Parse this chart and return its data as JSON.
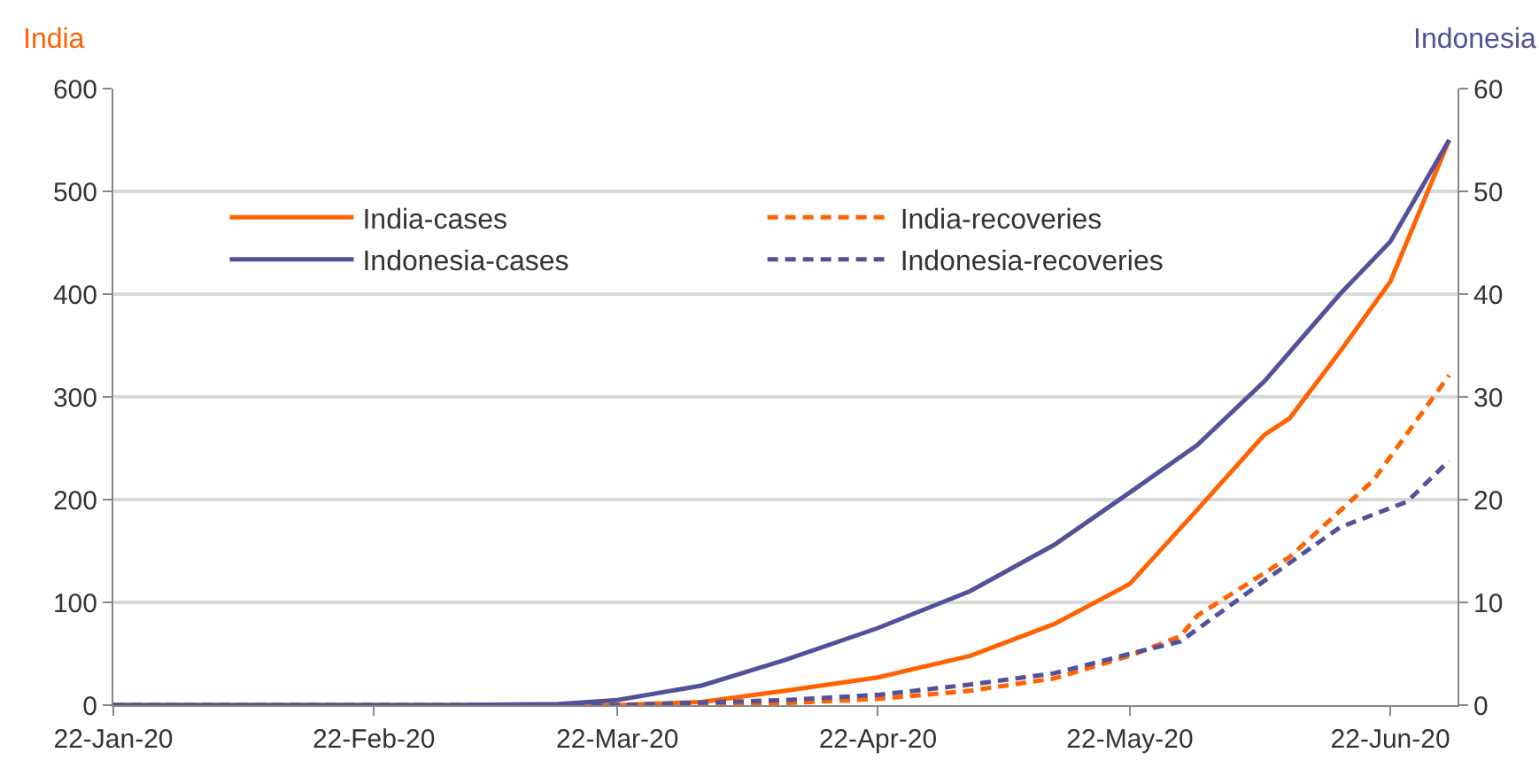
{
  "chart_data": {
    "type": "line",
    "ylabel": "India",
    "y2label": "Indonesia",
    "xlim": [
      "2020-01-22",
      "2020-06-30"
    ],
    "xticks": [
      {
        "value": "2020-01-22",
        "label": "22-Jan-20"
      },
      {
        "value": "2020-02-22",
        "label": "22-Feb-20"
      },
      {
        "value": "2020-03-22",
        "label": "22-Mar-20"
      },
      {
        "value": "2020-04-22",
        "label": "22-Apr-20"
      },
      {
        "value": "2020-05-22",
        "label": "22-May-20"
      },
      {
        "value": "2020-06-22",
        "label": "22-Jun-20"
      }
    ],
    "ylim": [
      0,
      600
    ],
    "yticks": [
      0,
      100,
      200,
      300,
      400,
      500,
      600
    ],
    "y2lim": [
      0,
      60
    ],
    "y2ticks": [
      0,
      10,
      20,
      30,
      40,
      50,
      60
    ],
    "grid": "y",
    "legend": "top left",
    "series": [
      {
        "name": "India-cases",
        "color": "#ff6200",
        "line_style": "solid",
        "x": [
          "2020-01-22",
          "2020-03-01",
          "2020-03-15",
          "2020-03-22",
          "2020-04-01",
          "2020-04-11",
          "2020-04-22",
          "2020-05-03",
          "2020-05-13",
          "2020-05-22",
          "2020-05-30",
          "2020-06-07",
          "2020-06-10",
          "2020-06-16",
          "2020-06-22",
          "2020-06-29"
        ],
        "values": [
          0,
          0,
          0,
          0,
          3,
          14,
          27,
          48,
          79,
          118,
          190,
          263,
          279,
          344,
          412,
          550
        ]
      },
      {
        "name": "India-recoveries",
        "color": "#ff6200",
        "line_style": "dashed",
        "x": [
          "2020-01-22",
          "2020-03-22",
          "2020-04-01",
          "2020-04-11",
          "2020-04-22",
          "2020-05-03",
          "2020-05-13",
          "2020-05-22",
          "2020-05-28",
          "2020-05-30",
          "2020-06-10",
          "2020-06-20",
          "2020-06-29"
        ],
        "values": [
          0,
          0,
          1,
          2,
          6,
          14,
          26,
          48,
          67,
          87,
          144,
          219,
          321
        ]
      },
      {
        "name": "Indonesia-cases",
        "color": "#525199",
        "line_style": "solid",
        "axis": "y2",
        "x": [
          "2020-01-22",
          "2020-03-01",
          "2020-03-15",
          "2020-03-22",
          "2020-04-01",
          "2020-04-11",
          "2020-04-22",
          "2020-05-03",
          "2020-05-13",
          "2020-05-22",
          "2020-05-30",
          "2020-06-07",
          "2020-06-16",
          "2020-06-22",
          "2020-06-29"
        ],
        "values": [
          0,
          0,
          0.1,
          0.5,
          1.9,
          4.4,
          7.5,
          11.1,
          15.6,
          20.7,
          25.3,
          31.5,
          40,
          45.1,
          55
        ]
      },
      {
        "name": "Indonesia-recoveries",
        "color": "#525199",
        "line_style": "dashed",
        "axis": "y2",
        "x": [
          "2020-01-22",
          "2020-03-22",
          "2020-04-11",
          "2020-04-22",
          "2020-05-03",
          "2020-05-13",
          "2020-05-22",
          "2020-05-28",
          "2020-06-07",
          "2020-06-16",
          "2020-06-24",
          "2020-06-29"
        ],
        "values": [
          0,
          0,
          0.5,
          1.0,
          2.0,
          3.1,
          5.0,
          6.2,
          12.1,
          17.3,
          19.8,
          23.8
        ]
      }
    ]
  }
}
